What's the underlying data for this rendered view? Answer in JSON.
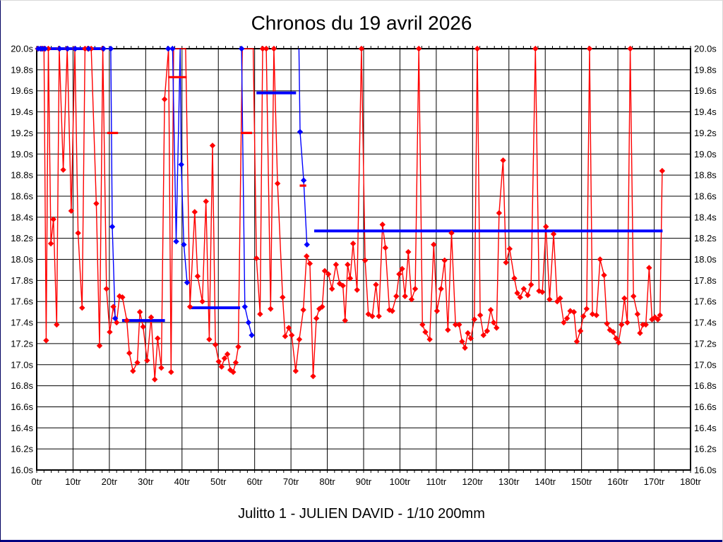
{
  "window": {
    "background": "#ffffff",
    "frame_color": "#000080"
  },
  "title": "Chronos du 19 avril 2026",
  "subtitle": "Julitto 1 - JULIEN DAVID - 1/10 200mm",
  "chart_data": {
    "type": "line",
    "title": "Chronos du 19 avril 2026",
    "subtitle": "Julitto 1 - JULIEN DAVID - 1/10 200mm",
    "x_unit": "tr",
    "y_unit": "s",
    "xlim": [
      0,
      180
    ],
    "ylim": [
      16.0,
      20.0
    ],
    "x_major_step": 10,
    "x_minor_step": 2,
    "y_step": 0.2,
    "grid": true,
    "legend_position": "none",
    "y_tick_labels": [
      "20.0s",
      "19.8s",
      "19.6s",
      "19.4s",
      "19.2s",
      "19.0s",
      "18.8s",
      "18.6s",
      "18.4s",
      "18.2s",
      "18.0s",
      "17.8s",
      "17.6s",
      "17.4s",
      "17.2s",
      "17.0s",
      "16.8s",
      "16.6s",
      "16.4s",
      "16.2s",
      "16.0s"
    ],
    "x_tick_labels": [
      "0tr",
      "10tr",
      "20tr",
      "30tr",
      "40tr",
      "50tr",
      "60tr",
      "70tr",
      "80tr",
      "90tr",
      "100tr",
      "110tr",
      "120tr",
      "130tr",
      "140tr",
      "150tr",
      "160tr",
      "170tr",
      "180tr"
    ],
    "colors": {
      "red_series": "#ff0000",
      "blue_series": "#0000ff",
      "grid": "#000000",
      "axis": "#000000",
      "text": "#000000"
    },
    "series": [
      {
        "name": "chronos-lap-times-red",
        "color": "#ff0000",
        "points": [
          [
            0.3,
            20,
            1
          ],
          [
            1.3,
            20,
            1
          ],
          [
            2.0,
            20,
            1
          ],
          [
            2.6,
            17.23,
            1
          ],
          [
            3.2,
            20,
            1
          ],
          [
            3.9,
            18.15,
            1
          ],
          [
            4.6,
            18.38,
            1
          ],
          [
            5.5,
            17.38,
            1
          ],
          [
            6.2,
            20,
            1
          ],
          [
            7.3,
            18.85,
            1
          ],
          [
            8.4,
            20,
            1
          ],
          [
            9.5,
            18.46,
            1
          ],
          [
            10.5,
            20,
            1
          ],
          [
            11.4,
            18.25,
            1
          ],
          [
            12.5,
            17.54,
            1
          ],
          [
            13.3,
            20,
            1
          ],
          [
            14.1,
            20,
            1
          ],
          [
            15.0,
            20,
            1
          ],
          [
            16.4,
            18.53,
            1
          ],
          [
            17.3,
            17.18,
            1
          ],
          [
            18.2,
            20,
            1
          ],
          [
            19.2,
            17.72,
            1
          ],
          [
            20.1,
            17.31,
            1
          ],
          [
            21.1,
            17.55,
            1
          ],
          [
            22.0,
            17.4,
            1
          ],
          [
            22.8,
            17.65,
            1
          ],
          [
            23.6,
            17.64,
            1
          ],
          [
            24.8,
            17.42,
            1
          ],
          [
            25.5,
            17.11,
            1
          ],
          [
            26.5,
            16.94,
            1
          ],
          [
            27.7,
            17.02,
            1
          ],
          [
            28.4,
            17.5,
            1
          ],
          [
            29.3,
            17.36,
            1
          ],
          [
            30.4,
            17.04,
            1
          ],
          [
            31.5,
            17.45,
            1
          ],
          [
            32.5,
            16.86,
            1
          ],
          [
            33.3,
            17.25,
            1
          ],
          [
            34.3,
            16.97,
            1
          ],
          [
            35.2,
            19.52,
            1
          ],
          [
            36.3,
            20,
            0
          ],
          [
            37.0,
            16.93,
            1
          ],
          [
            37.7,
            20,
            0
          ],
          [
            38.7,
            20,
            0
          ],
          [
            39.9,
            20,
            0
          ],
          [
            41.0,
            20,
            0
          ],
          [
            42.2,
            17.55,
            1
          ],
          [
            43.5,
            18.45,
            1
          ],
          [
            44.3,
            17.84,
            1
          ],
          [
            45.6,
            17.6,
            1
          ],
          [
            46.6,
            18.55,
            1
          ],
          [
            47.5,
            17.24,
            1
          ],
          [
            48.4,
            19.08,
            1
          ],
          [
            49.2,
            17.19,
            1
          ],
          [
            50.1,
            17.03,
            1
          ],
          [
            50.9,
            16.98,
            1
          ],
          [
            51.7,
            17.06,
            1
          ],
          [
            52.5,
            17.1,
            1
          ],
          [
            53.3,
            16.95,
            1
          ],
          [
            54.1,
            16.93,
            1
          ],
          [
            54.8,
            17.02,
            1
          ],
          [
            55.5,
            17.17,
            1
          ],
          [
            56.6,
            20,
            0
          ],
          [
            57.6,
            20,
            0
          ],
          [
            58.6,
            20,
            0
          ],
          [
            59.6,
            20,
            0
          ],
          [
            60.5,
            18.01,
            1
          ],
          [
            61.5,
            17.48,
            1
          ],
          [
            62.2,
            20,
            1
          ],
          [
            63.2,
            20,
            1
          ],
          [
            64.4,
            17.53,
            1
          ],
          [
            65.3,
            20,
            1
          ],
          [
            66.3,
            18.72,
            1
          ],
          [
            67.7,
            17.64,
            1
          ],
          [
            68.4,
            17.27,
            1
          ],
          [
            69.4,
            17.35,
            1
          ],
          [
            70.2,
            17.28,
            1
          ],
          [
            71.3,
            16.94,
            1
          ],
          [
            72.3,
            17.24,
            1
          ],
          [
            73.4,
            17.52,
            1
          ],
          [
            74.3,
            18.03,
            1
          ],
          [
            75.2,
            17.96,
            1
          ],
          [
            76.1,
            16.89,
            1
          ],
          [
            77.0,
            17.44,
            1
          ],
          [
            77.8,
            17.53,
            1
          ],
          [
            78.6,
            17.55,
            1
          ],
          [
            79.3,
            17.89,
            1
          ],
          [
            80.3,
            17.86,
            1
          ],
          [
            81.3,
            17.72,
            1
          ],
          [
            82.4,
            17.95,
            1
          ],
          [
            83.4,
            17.77,
            1
          ],
          [
            84.3,
            17.75,
            1
          ],
          [
            84.9,
            17.42,
            1
          ],
          [
            85.6,
            17.95,
            1
          ],
          [
            86.3,
            17.82,
            1
          ],
          [
            87.1,
            18.15,
            1
          ],
          [
            88.2,
            17.71,
            1
          ],
          [
            89.4,
            20,
            1
          ],
          [
            90.4,
            17.99,
            1
          ],
          [
            91.3,
            17.48,
            1
          ],
          [
            92.4,
            17.46,
            1
          ],
          [
            93.4,
            17.76,
            1
          ],
          [
            94.2,
            17.46,
            1
          ],
          [
            95.2,
            18.33,
            1
          ],
          [
            96.0,
            18.11,
            1
          ],
          [
            97.1,
            17.52,
            1
          ],
          [
            97.9,
            17.51,
            1
          ],
          [
            99.0,
            17.65,
            1
          ],
          [
            99.8,
            17.86,
            1
          ],
          [
            100.6,
            17.91,
            1
          ],
          [
            101.4,
            17.65,
            1
          ],
          [
            102.3,
            18.07,
            1
          ],
          [
            103.2,
            17.62,
            1
          ],
          [
            104.2,
            17.72,
            1
          ],
          [
            105.2,
            20,
            1
          ],
          [
            106.2,
            17.38,
            1
          ],
          [
            107.0,
            17.31,
            1
          ],
          [
            108.2,
            17.24,
            1
          ],
          [
            109.3,
            18.14,
            1
          ],
          [
            110.2,
            17.51,
            1
          ],
          [
            111.3,
            17.72,
            1
          ],
          [
            112.3,
            17.99,
            1
          ],
          [
            113.2,
            17.33,
            1
          ],
          [
            114.2,
            18.25,
            1
          ],
          [
            115.3,
            17.38,
            1
          ],
          [
            116.3,
            17.38,
            1
          ],
          [
            117.1,
            17.22,
            1
          ],
          [
            117.9,
            17.16,
            1
          ],
          [
            118.7,
            17.3,
            1
          ],
          [
            119.5,
            17.25,
            1
          ],
          [
            120.5,
            17.43,
            1
          ],
          [
            121.3,
            20,
            1
          ],
          [
            122.1,
            17.47,
            1
          ],
          [
            123.0,
            17.28,
            1
          ],
          [
            124.0,
            17.32,
            1
          ],
          [
            125.0,
            17.52,
            1
          ],
          [
            125.8,
            17.4,
            1
          ],
          [
            126.6,
            17.35,
            1
          ],
          [
            127.3,
            18.44,
            1
          ],
          [
            128.4,
            18.94,
            1
          ],
          [
            129.2,
            17.97,
            1
          ],
          [
            130.2,
            18.1,
            1
          ],
          [
            131.5,
            17.82,
            1
          ],
          [
            132.3,
            17.68,
            1
          ],
          [
            133.1,
            17.64,
            1
          ],
          [
            134.1,
            17.72,
            1
          ],
          [
            135.2,
            17.66,
            1
          ],
          [
            136.1,
            17.76,
            1
          ],
          [
            137.3,
            20,
            1
          ],
          [
            138.3,
            17.7,
            1
          ],
          [
            139.2,
            17.69,
            1
          ],
          [
            140.2,
            18.31,
            1
          ],
          [
            141.2,
            17.62,
            1
          ],
          [
            142.3,
            18.24,
            1
          ],
          [
            143.3,
            17.6,
            1
          ],
          [
            144.1,
            17.63,
            1
          ],
          [
            145.1,
            17.4,
            1
          ],
          [
            146.0,
            17.44,
            1
          ],
          [
            146.9,
            17.51,
            1
          ],
          [
            147.9,
            17.5,
            1
          ],
          [
            148.7,
            17.22,
            1
          ],
          [
            149.7,
            17.32,
            1
          ],
          [
            150.5,
            17.46,
            1
          ],
          [
            151.4,
            17.53,
            1
          ],
          [
            152.2,
            20,
            1
          ],
          [
            153.0,
            17.48,
            1
          ],
          [
            154.1,
            17.47,
            1
          ],
          [
            155.1,
            18.0,
            1
          ],
          [
            156.2,
            17.85,
            1
          ],
          [
            157.0,
            17.39,
            1
          ],
          [
            157.8,
            17.33,
            1
          ],
          [
            158.7,
            17.31,
            1
          ],
          [
            159.5,
            17.25,
            1
          ],
          [
            160.2,
            17.21,
            1
          ],
          [
            161.0,
            17.38,
            1
          ],
          [
            161.8,
            17.63,
            1
          ],
          [
            162.6,
            17.4,
            1
          ],
          [
            163.4,
            20,
            1
          ],
          [
            164.3,
            17.65,
            1
          ],
          [
            165.4,
            17.48,
            1
          ],
          [
            166.1,
            17.3,
            1
          ],
          [
            166.9,
            17.38,
            1
          ],
          [
            167.7,
            17.38,
            1
          ],
          [
            168.6,
            17.92,
            1
          ],
          [
            169.4,
            17.43,
            1
          ],
          [
            170.2,
            17.45,
            1
          ],
          [
            171.0,
            17.43,
            1
          ],
          [
            171.6,
            17.47,
            1
          ],
          [
            172.2,
            18.84,
            1
          ]
        ]
      },
      {
        "name": "chronos-lap-times-blue",
        "color": "#0000ff",
        "paths": [
          [
            [
              0.4,
              20,
              1
            ],
            [
              1.0,
              20,
              1
            ],
            [
              1.6,
              20,
              1
            ],
            [
              2.3,
              20,
              1
            ],
            [
              6.3,
              20,
              1
            ],
            [
              8.5,
              20,
              1
            ],
            [
              10.6,
              20,
              1
            ],
            [
              14.3,
              20,
              1
            ],
            [
              18.4,
              20,
              1
            ],
            [
              20.4,
              20,
              1
            ],
            [
              20.8,
              18.31,
              1
            ],
            [
              21.6,
              17.44,
              1
            ]
          ],
          [
            [
              36.2,
              20,
              1
            ],
            [
              37.4,
              20,
              1
            ],
            [
              38.4,
              18.17,
              1
            ],
            [
              39.5,
              20,
              0
            ],
            [
              39.8,
              18.9,
              1
            ],
            [
              40.5,
              18.14,
              1
            ],
            [
              41.4,
              17.78,
              1
            ]
          ],
          [
            [
              56.4,
              20,
              1
            ],
            [
              57.3,
              17.55,
              1
            ],
            [
              58.3,
              17.4,
              1
            ],
            [
              59.2,
              17.28,
              1
            ]
          ],
          [
            [
              72.2,
              20,
              0
            ],
            [
              72.5,
              19.21,
              1
            ],
            [
              73.5,
              18.75,
              1
            ],
            [
              74.4,
              18.14,
              1
            ]
          ]
        ]
      }
    ],
    "segment_averages": [
      {
        "series": "blue",
        "x1": 0.0,
        "x2": 18.5,
        "y": 20.0
      },
      {
        "series": "blue",
        "x1": 23.5,
        "x2": 35.3,
        "y": 17.42
      },
      {
        "series": "blue",
        "x1": 42.5,
        "x2": 56.0,
        "y": 17.54
      },
      {
        "series": "blue",
        "x1": 60.5,
        "x2": 71.4,
        "y": 19.58
      },
      {
        "series": "blue",
        "x1": 76.4,
        "x2": 172.3,
        "y": 18.27
      },
      {
        "series": "red",
        "x1": 19.4,
        "x2": 22.4,
        "y": 19.2
      },
      {
        "series": "red",
        "x1": 36.2,
        "x2": 41.3,
        "y": 19.73
      },
      {
        "series": "red",
        "x1": 56.2,
        "x2": 59.3,
        "y": 19.2
      },
      {
        "series": "red",
        "x1": 72.4,
        "x2": 74.2,
        "y": 18.7
      }
    ]
  }
}
